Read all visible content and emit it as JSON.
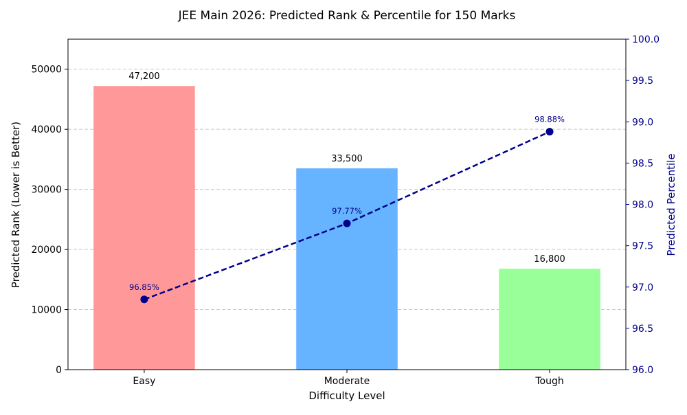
{
  "chart_data": {
    "type": "bar",
    "title": "JEE Main 2026: Predicted Rank & Percentile for 150 Marks",
    "xlabel": "Difficulty Level",
    "ylabel": "Predicted Rank (Lower is Better)",
    "ylabel_right": "Predicted Percentile",
    "categories": [
      "Easy",
      "Moderate",
      "Tough"
    ],
    "bar_series": {
      "values": [
        47200,
        33500,
        16800
      ],
      "labels": [
        "47,200",
        "33,500",
        "16,800"
      ],
      "colors": [
        "#ff9999",
        "#66b3ff",
        "#99ff99"
      ]
    },
    "line_series": {
      "values": [
        96.85,
        97.77,
        98.88
      ],
      "labels": [
        "96.85%",
        "97.77%",
        "98.88%"
      ],
      "color": "#00008b",
      "style": "dashed with circle markers"
    },
    "ylim": [
      0,
      55000
    ],
    "yticks": [
      "0",
      "10000",
      "20000",
      "30000",
      "40000",
      "50000"
    ],
    "ylim_right": [
      96.0,
      100.0
    ],
    "yticks_right": [
      "96.0",
      "96.5",
      "97.0",
      "97.5",
      "98.0",
      "98.5",
      "99.0",
      "99.5",
      "100.0"
    ],
    "grid": "horizontal dashed (left axis)",
    "legend": "none"
  }
}
